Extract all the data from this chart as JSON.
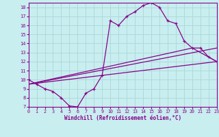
{
  "xlabel": "Windchill (Refroidissement éolien,°C)",
  "xlim": [
    0,
    23
  ],
  "ylim": [
    7,
    18.5
  ],
  "xticks": [
    0,
    1,
    2,
    3,
    4,
    5,
    6,
    7,
    8,
    9,
    10,
    11,
    12,
    13,
    14,
    15,
    16,
    17,
    18,
    19,
    20,
    21,
    22,
    23
  ],
  "yticks": [
    7,
    8,
    9,
    10,
    11,
    12,
    13,
    14,
    15,
    16,
    17,
    18
  ],
  "bg_color": "#c8eef0",
  "grid_color": "#b0d8da",
  "line_color": "#880088",
  "main_curve_x": [
    0,
    1,
    2,
    3,
    4,
    5,
    6,
    7,
    8,
    9,
    10,
    11,
    12,
    13,
    14,
    15,
    16,
    17,
    18,
    19,
    20,
    21,
    22,
    23
  ],
  "main_curve_y": [
    10.0,
    9.5,
    9.0,
    8.7,
    8.0,
    7.1,
    7.0,
    8.5,
    9.0,
    10.5,
    16.5,
    16.0,
    17.0,
    17.5,
    18.2,
    18.5,
    18.0,
    16.5,
    16.2,
    14.3,
    13.5,
    13.5,
    12.5,
    12.0
  ],
  "line1_x": [
    0,
    23
  ],
  "line1_y": [
    9.5,
    12.0
  ],
  "line2_x": [
    0,
    20,
    23
  ],
  "line2_y": [
    9.5,
    13.5,
    12.0
  ],
  "line3_x": [
    0,
    23
  ],
  "line3_y": [
    9.5,
    13.5
  ]
}
